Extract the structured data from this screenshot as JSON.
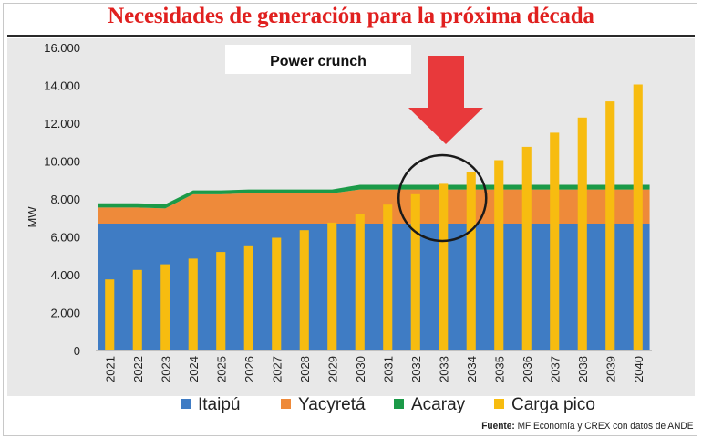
{
  "header": {
    "title": "Necesidades de generación para la próxima década"
  },
  "footer": {
    "source_label": "Fuente:",
    "source_text": "MF Economía y CREX con datos de ANDE"
  },
  "chart_data": {
    "type": "area+bar",
    "title": "Necesidades de generación para la próxima década",
    "xlabel": "",
    "ylabel": "MW",
    "ylim": [
      0,
      16000
    ],
    "yticks": [
      0,
      2000,
      4000,
      6000,
      8000,
      10000,
      12000,
      14000,
      16000
    ],
    "ytick_labels": [
      "0",
      "2.000",
      "4.000",
      "6.000",
      "8.000",
      "10.000",
      "12.000",
      "14.000",
      "16.000"
    ],
    "categories": [
      "2021",
      "2022",
      "2023",
      "2024",
      "2025",
      "2026",
      "2027",
      "2028",
      "2029",
      "2030",
      "2031",
      "2032",
      "2033",
      "2034",
      "2035",
      "2036",
      "2037",
      "2038",
      "2039",
      "2040"
    ],
    "series": [
      {
        "name": "Itaipú",
        "type": "stacked-area",
        "color": "#3f7cc4",
        "values": [
          6700,
          6700,
          6700,
          6700,
          6700,
          6700,
          6700,
          6700,
          6700,
          6700,
          6700,
          6700,
          6700,
          6700,
          6700,
          6700,
          6700,
          6700,
          6700,
          6700
        ]
      },
      {
        "name": "Yacyretá",
        "type": "stacked-area",
        "color": "#ee8a3a",
        "values": [
          850,
          850,
          800,
          1550,
          1550,
          1600,
          1600,
          1600,
          1600,
          1800,
          1800,
          1800,
          1800,
          1800,
          1800,
          1800,
          1800,
          1800,
          1800,
          1800
        ]
      },
      {
        "name": "Acaray",
        "type": "stacked-area",
        "color": "#1b9a48",
        "values": [
          220,
          220,
          220,
          200,
          200,
          200,
          200,
          200,
          200,
          250,
          250,
          250,
          250,
          250,
          250,
          250,
          250,
          250,
          250,
          250
        ]
      },
      {
        "name": "Carga pico",
        "type": "bar",
        "color": "#f7bc10",
        "values": [
          3750,
          4250,
          4550,
          4850,
          5200,
          5550,
          5950,
          6350,
          6750,
          7200,
          7700,
          8250,
          8800,
          9400,
          10050,
          10750,
          11500,
          12300,
          13150,
          14050
        ]
      }
    ],
    "legend": [
      "Itaipú",
      "Yacyretá",
      "Acaray",
      "Carga pico"
    ],
    "legend_position": "bottom",
    "grid": false,
    "annotations": [
      {
        "type": "label",
        "text": "Power crunch"
      },
      {
        "type": "arrow",
        "color": "#e8393b",
        "points_to": "2033"
      },
      {
        "type": "circle",
        "around": "2033"
      }
    ]
  }
}
